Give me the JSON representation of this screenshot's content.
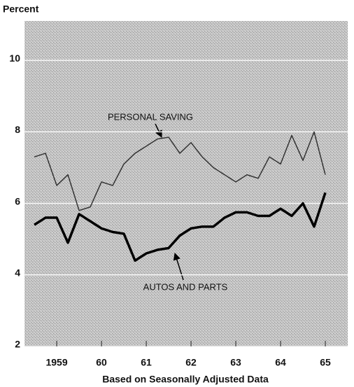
{
  "chart_data": {
    "type": "line",
    "ylabel": "Percent",
    "xlabel": "Based on Seasonally Adjusted Data",
    "x": [
      1959,
      1959.25,
      1959.5,
      1959.75,
      1960,
      1960.25,
      1960.5,
      1960.75,
      1961,
      1961.25,
      1961.5,
      1961.75,
      1962,
      1962.25,
      1962.5,
      1962.75,
      1963,
      1963.25,
      1963.5,
      1963.75,
      1964,
      1964.25,
      1964.5,
      1964.75,
      1965,
      1965.25,
      1965.5
    ],
    "series": [
      {
        "name": "PERSONAL SAVING",
        "color": "#333333",
        "width": 1.5,
        "values": [
          7.3,
          7.4,
          6.5,
          6.8,
          5.8,
          5.9,
          6.6,
          6.5,
          7.1,
          7.4,
          7.6,
          7.8,
          7.85,
          7.4,
          7.7,
          7.3,
          7.0,
          6.8,
          6.6,
          6.8,
          6.7,
          7.3,
          7.1,
          7.9,
          7.2,
          8.0,
          6.8
        ]
      },
      {
        "name": "AUTOS AND PARTS",
        "color": "#000000",
        "width": 3.5,
        "values": [
          5.4,
          5.6,
          5.6,
          4.9,
          5.7,
          5.5,
          5.3,
          5.2,
          5.15,
          4.4,
          4.6,
          4.7,
          4.75,
          5.1,
          5.3,
          5.35,
          5.35,
          5.6,
          5.75,
          5.75,
          5.65,
          5.65,
          5.85,
          5.65,
          6.0,
          5.35,
          6.3
        ]
      }
    ],
    "xlim": [
      1958.78,
      1966.0
    ],
    "xticks": [
      {
        "value": 1959.5,
        "label": "1959"
      },
      {
        "value": 1960.5,
        "label": "60"
      },
      {
        "value": 1961.5,
        "label": "61"
      },
      {
        "value": 1962.5,
        "label": "62"
      },
      {
        "value": 1963.5,
        "label": "63"
      },
      {
        "value": 1964.5,
        "label": "64"
      },
      {
        "value": 1965.5,
        "label": "65"
      }
    ],
    "ylim": [
      2,
      11.1
    ],
    "yticks": [
      2,
      4,
      6,
      8,
      10
    ],
    "grid": true
  }
}
